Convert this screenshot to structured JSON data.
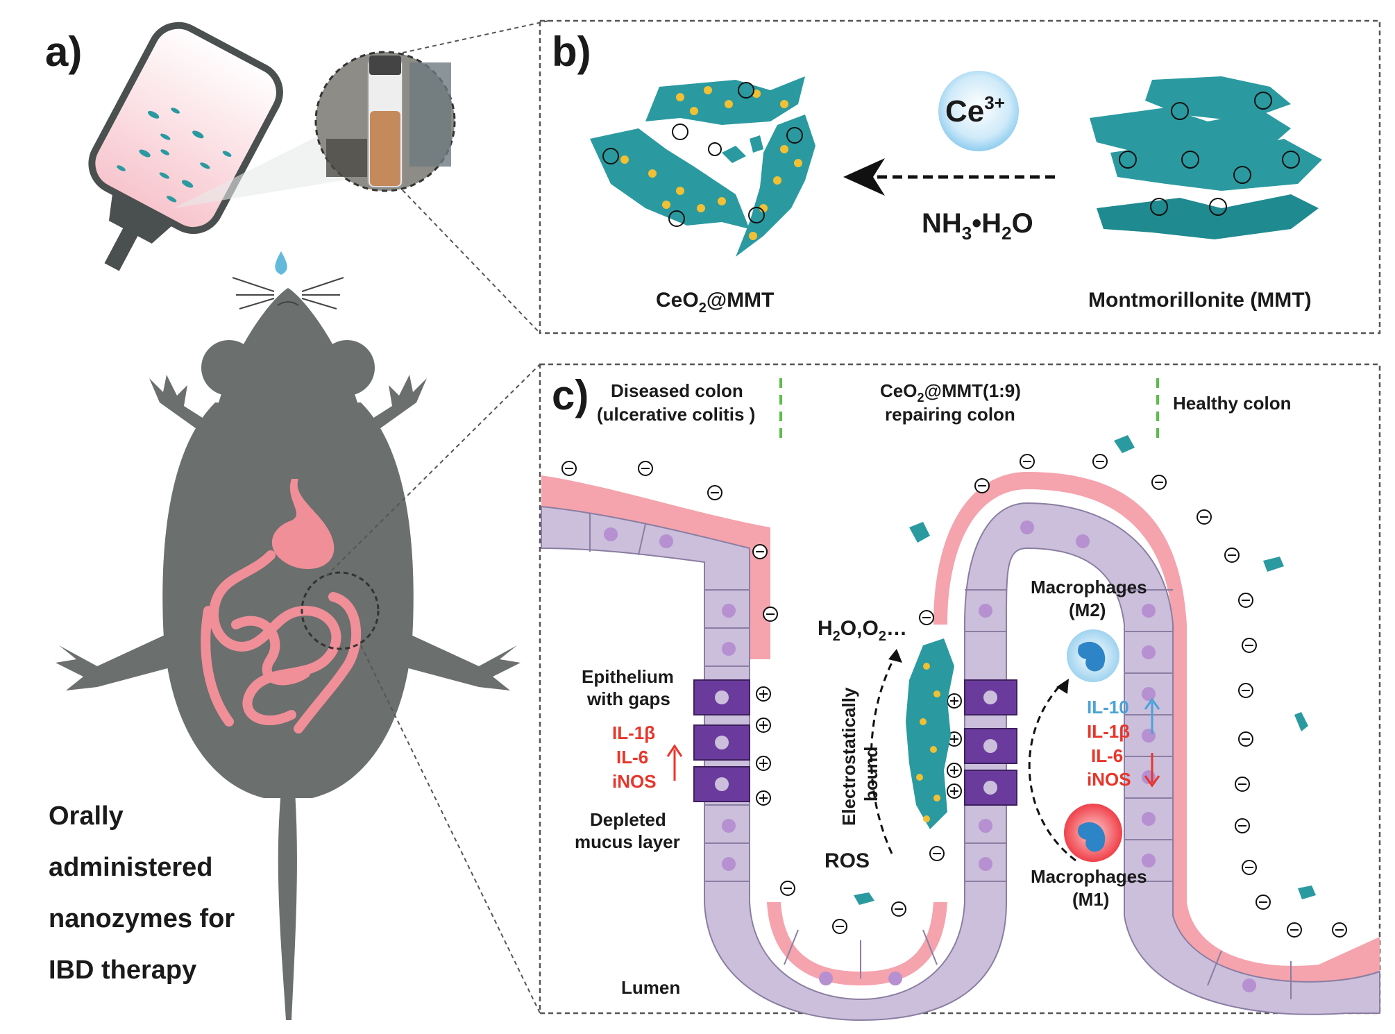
{
  "panel_a": {
    "label": "a)",
    "caption_lines": [
      "Orally",
      "administered",
      "nanozymes for",
      "IBD therapy"
    ]
  },
  "panel_b": {
    "label": "b)",
    "ion": {
      "base": "Ce",
      "sup": "3+"
    },
    "reagent": {
      "p1": "NH",
      "s1": "3",
      "p2": "•H",
      "s2": "2",
      "p3": "O"
    },
    "product": {
      "p1": "CeO",
      "s1": "2",
      "p2": "@MMT"
    },
    "source_label": "Montmorillonite (MMT)"
  },
  "panel_c": {
    "label": "c)",
    "zone_diseased": [
      "Diseased colon",
      "(ulcerative colitis )"
    ],
    "zone_repair": {
      "l1_p1": "CeO",
      "l1_s1": "2",
      "l1_p2": "@MMT(1:9)",
      "l2": "repairing colon"
    },
    "zone_healthy": "Healthy colon",
    "epithelium": [
      "Epithelium",
      "with gaps"
    ],
    "cytokines_up": [
      "IL-1β",
      "IL-6",
      "iNOS"
    ],
    "depleted": [
      "Depleted",
      "mucus layer"
    ],
    "electro": [
      "Electrostatically",
      "bound"
    ],
    "products": {
      "p1": "H",
      "s1": "2",
      "p2": "O,O",
      "s2": "2",
      "p3": "…"
    },
    "ros": "ROS",
    "m2": [
      "Macrophages",
      "(M2)"
    ],
    "m1": [
      "Macrophages",
      "(M1)"
    ],
    "il10": "IL-10",
    "cytokines_down": [
      "IL-1β",
      "IL-6",
      "iNOS"
    ],
    "lumen": "Lumen"
  },
  "colors": {
    "mouse": "#6b6f6e",
    "clay": "#2a9aa0",
    "mucus": "#f5a3ad",
    "cell": "#cbbfdc",
    "gap_cell": "#6a3b9c",
    "red": "#e8352a",
    "blue": "#4aa3d8",
    "dashed_border": "#555555"
  }
}
